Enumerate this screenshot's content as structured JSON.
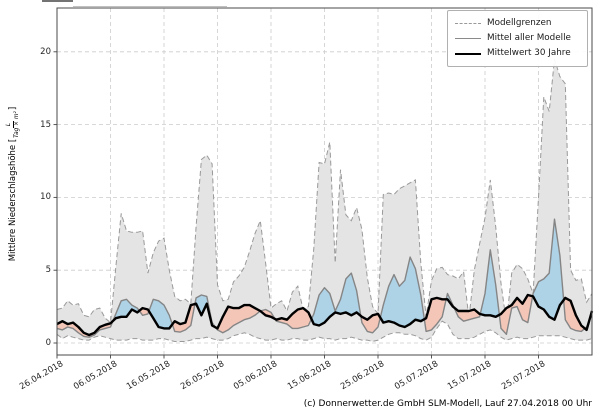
{
  "footer": "(c) Donnerwetter.de GmbH SLM-Modell, Lauf 27.04.2018 00 Uhr",
  "ylabel": {
    "text": "Mittlere Niederschlagshöhe [",
    "frac_num": "L",
    "frac_den": "Tag × m²",
    "bracket_close": "]"
  },
  "legend": {
    "items": [
      {
        "label": "Modellgrenzen",
        "style": "dashed-gray"
      },
      {
        "label": "Mittel aller Modelle",
        "style": "solid-gray"
      },
      {
        "label": "Mittelwert 30 Jahre",
        "style": "solid-black-thick"
      }
    ]
  },
  "colors": {
    "band_fill": "#e4e4e4",
    "band_border": "#999999",
    "mean_line": "#858585",
    "climate_line": "#000000",
    "fill_above": "#aed2e6",
    "fill_below": "#f3c6b8",
    "grid": "#cccccc",
    "spine": "#4a4a4a",
    "tick": "#444444"
  },
  "chart_data": {
    "type": "line",
    "title": "",
    "xlabel": "",
    "ylabel": "Mittlere Niederschlagshöhe [L/(Tag × m²)]",
    "grid": true,
    "legend_position": "upper right",
    "x_unit": "days since 26.04.2018",
    "x_tick_days": [
      0,
      10,
      20,
      30,
      40,
      50,
      60,
      70,
      80,
      90
    ],
    "x_tick_labels": [
      "26.04.2018",
      "06.05.2018",
      "16.05.2018",
      "26.05.2018",
      "05.06.2018",
      "15.06.2018",
      "25.06.2018",
      "05.07.2018",
      "15.07.2018",
      "25.07.2018"
    ],
    "xlim_days": [
      0,
      100
    ],
    "y_ticks": [
      0,
      5,
      10,
      15,
      20
    ],
    "ylim": [
      -0.8,
      23.0
    ],
    "series": [
      {
        "name": "Modellgrenzen (obere Grenze)",
        "role": "upper",
        "values": [
          2.3,
          2.4,
          2.9,
          2.6,
          2.7,
          1.9,
          1.8,
          2.3,
          2.4,
          1.7,
          1.4,
          5.2,
          8.9,
          7.7,
          7.6,
          7.6,
          7.7,
          4.8,
          6.2,
          7.0,
          7.2,
          5.0,
          3.2,
          2.9,
          3.0,
          2.7,
          8.0,
          12.6,
          12.9,
          12.3,
          4.0,
          2.9,
          3.0,
          4.2,
          4.6,
          5.2,
          6.3,
          7.5,
          8.4,
          5.5,
          2.4,
          2.7,
          2.9,
          2.2,
          3.5,
          3.9,
          2.3,
          2.5,
          6.5,
          12.4,
          12.3,
          13.8,
          5.5,
          11.9,
          8.8,
          8.4,
          9.3,
          7.8,
          4.5,
          2.5,
          2.0,
          10.2,
          10.3,
          10.2,
          10.6,
          10.8,
          11.0,
          11.2,
          5.5,
          1.8,
          4.3,
          5.1,
          5.2,
          4.7,
          4.6,
          4.4,
          4.9,
          1.7,
          5.0,
          6.8,
          8.6,
          11.2,
          8.0,
          4.1,
          1.4,
          4.8,
          5.4,
          5.1,
          4.4,
          3.4,
          10.0,
          16.9,
          15.9,
          19.5,
          18.3,
          17.8,
          5.0,
          4.3,
          4.4,
          2.8,
          3.4
        ]
      },
      {
        "name": "Modellgrenzen (untere Grenze)",
        "role": "lower",
        "values": [
          0.6,
          0.3,
          0.5,
          0.4,
          0.3,
          0.2,
          0.2,
          0.4,
          0.5,
          0.4,
          0.3,
          0.2,
          0.2,
          0.2,
          0.3,
          0.3,
          0.2,
          0.2,
          0.2,
          0.3,
          0.3,
          0.2,
          0.1,
          0.1,
          0.1,
          0.2,
          0.3,
          0.3,
          0.4,
          0.3,
          0.2,
          0.2,
          0.3,
          0.5,
          0.6,
          0.7,
          0.6,
          0.4,
          0.3,
          0.2,
          0.2,
          0.3,
          0.2,
          0.2,
          0.3,
          0.3,
          0.2,
          0.2,
          0.3,
          0.4,
          0.3,
          0.3,
          0.2,
          0.3,
          0.3,
          0.4,
          0.3,
          0.2,
          0.2,
          0.1,
          0.2,
          0.4,
          0.6,
          0.7,
          0.7,
          0.6,
          0.6,
          0.5,
          0.3,
          0.2,
          0.4,
          1.0,
          1.5,
          1.3,
          0.6,
          0.3,
          0.3,
          0.3,
          0.4,
          0.6,
          0.8,
          0.9,
          0.7,
          0.4,
          0.2,
          0.3,
          0.4,
          0.3,
          0.3,
          0.4,
          0.5,
          0.5,
          0.5,
          0.5,
          0.5,
          0.4,
          0.3,
          0.2,
          0.2,
          0.2,
          0.3
        ]
      },
      {
        "name": "Mittel aller Modelle",
        "role": "mean",
        "values": [
          1.0,
          0.9,
          1.1,
          1.0,
          0.7,
          0.45,
          0.4,
          0.55,
          0.9,
          1.0,
          1.1,
          2.0,
          2.9,
          3.0,
          2.6,
          2.4,
          1.9,
          2.0,
          3.0,
          2.9,
          2.6,
          1.9,
          0.8,
          0.75,
          0.9,
          1.2,
          3.1,
          3.3,
          3.2,
          1.4,
          0.9,
          0.7,
          0.9,
          1.2,
          1.4,
          1.6,
          1.7,
          1.9,
          2.2,
          2.3,
          2.1,
          1.5,
          1.4,
          1.3,
          1.0,
          1.0,
          1.1,
          1.2,
          2.0,
          3.3,
          3.8,
          3.4,
          2.2,
          3.0,
          4.4,
          4.8,
          3.6,
          1.4,
          0.8,
          0.7,
          1.1,
          2.6,
          3.9,
          4.7,
          3.9,
          4.3,
          5.9,
          5.1,
          3.3,
          0.8,
          0.9,
          1.3,
          1.8,
          3.4,
          2.6,
          1.8,
          1.5,
          1.6,
          1.7,
          1.8,
          3.4,
          6.4,
          4.0,
          1.0,
          0.6,
          2.4,
          2.5,
          1.6,
          1.4,
          3.4,
          4.2,
          4.4,
          4.8,
          8.5,
          6.0,
          1.6,
          1.0,
          0.85,
          0.8,
          1.1,
          2.0
        ]
      },
      {
        "name": "Mittelwert 30 Jahre",
        "role": "clim",
        "values": [
          1.3,
          1.5,
          1.3,
          1.4,
          1.1,
          0.7,
          0.55,
          0.7,
          1.1,
          1.25,
          1.35,
          1.7,
          1.8,
          1.8,
          2.3,
          2.1,
          2.4,
          2.3,
          1.7,
          1.1,
          1.0,
          1.0,
          1.5,
          1.3,
          1.4,
          2.6,
          2.7,
          1.9,
          2.7,
          1.2,
          1.0,
          1.8,
          2.5,
          2.4,
          2.4,
          2.6,
          2.6,
          2.4,
          2.2,
          1.9,
          1.8,
          1.6,
          1.7,
          1.6,
          2.0,
          2.3,
          2.4,
          2.1,
          1.3,
          1.2,
          1.4,
          1.8,
          2.1,
          2.0,
          2.1,
          1.9,
          2.1,
          1.8,
          1.6,
          1.9,
          2.0,
          1.4,
          1.5,
          1.4,
          1.2,
          1.1,
          1.3,
          1.6,
          1.5,
          1.7,
          3.0,
          3.1,
          3.0,
          3.0,
          2.5,
          2.2,
          2.2,
          2.2,
          2.3,
          2.0,
          1.9,
          1.9,
          1.8,
          2.0,
          2.4,
          2.6,
          3.1,
          2.7,
          3.3,
          3.2,
          2.5,
          2.3,
          1.8,
          1.6,
          2.6,
          3.1,
          2.9,
          1.9,
          1.2,
          0.9,
          2.2
        ]
      }
    ]
  }
}
